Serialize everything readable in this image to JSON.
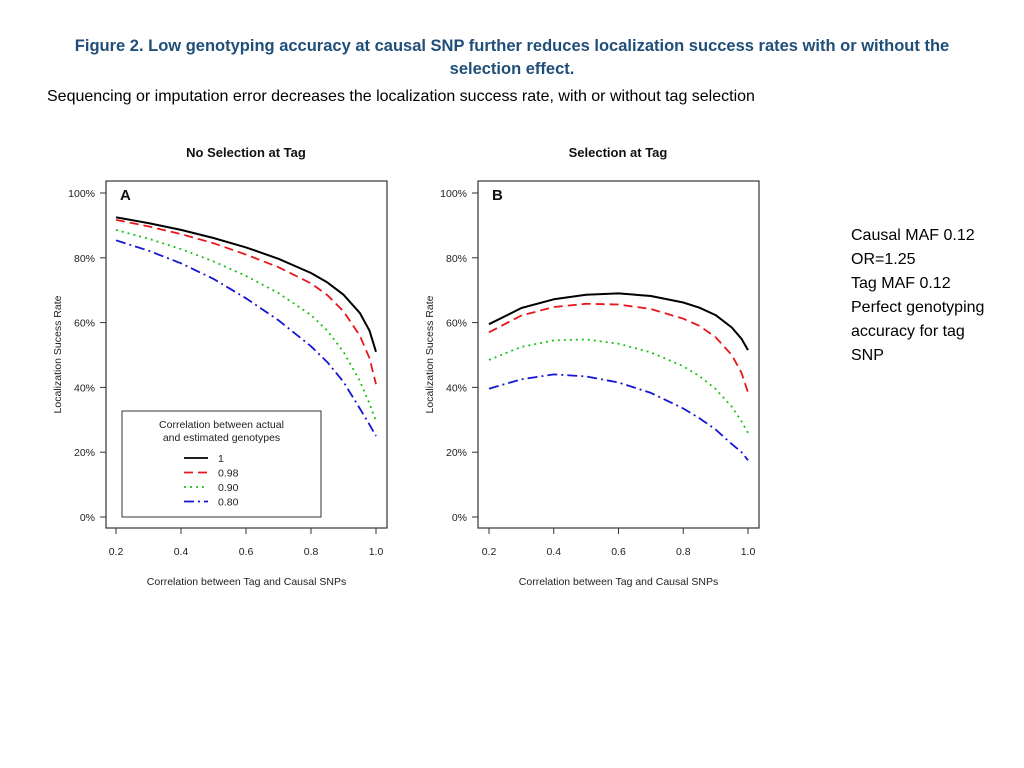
{
  "header": {
    "title": "Figure 2. Low genotyping accuracy at causal SNP further reduces localization success rates with or without the selection effect.",
    "subtitle": "Sequencing or imputation error decreases the localization success rate, with or without tag selection"
  },
  "notes": {
    "lines": [
      "Causal MAF 0.12",
      "OR=1.25",
      "Tag MAF 0.12",
      "Perfect genotyping",
      "accuracy for tag",
      "SNP"
    ]
  },
  "series_styles": [
    {
      "name": "1",
      "color": "#000000",
      "dash": "solid"
    },
    {
      "name": "0.98",
      "color": "#e8161b",
      "dash": "dashed"
    },
    {
      "name": "0.90",
      "color": "#16c416",
      "dash": "dotted"
    },
    {
      "name": "0.80",
      "color": "#1414d6",
      "dash": "dashdot"
    }
  ],
  "chart_data": [
    {
      "type": "line",
      "title": "No Selection at Tag",
      "panel_label": "A",
      "xlabel": "Correlation between Tag and Causal SNPs",
      "ylabel": "Localization Sucess Rate",
      "xlim": [
        0.2,
        1.0
      ],
      "ylim": [
        0,
        100
      ],
      "xticks": [
        "0.2",
        "0.4",
        "0.6",
        "0.8",
        "1.0"
      ],
      "yticks": [
        "0%",
        "20%",
        "40%",
        "60%",
        "80%",
        "100%"
      ],
      "legend": {
        "title_lines": [
          "Correlation between actual",
          "and estimated genotypes"
        ],
        "placement": "bottom-left"
      },
      "x": [
        0.2,
        0.3,
        0.4,
        0.5,
        0.6,
        0.7,
        0.8,
        0.85,
        0.9,
        0.95,
        0.98,
        1.0
      ],
      "series": [
        {
          "name": "1",
          "values": [
            92.5,
            90.7,
            88.6,
            86.1,
            83.2,
            79.7,
            75.3,
            72.4,
            68.6,
            63.0,
            57.5,
            51.0
          ]
        },
        {
          "name": "0.98",
          "values": [
            91.7,
            89.7,
            87.3,
            84.5,
            81.0,
            77.1,
            72.1,
            68.5,
            63.5,
            56.0,
            49.0,
            41.0
          ]
        },
        {
          "name": "0.90",
          "values": [
            88.6,
            85.9,
            82.7,
            78.9,
            74.4,
            69.1,
            62.3,
            57.5,
            51.0,
            42.0,
            35.0,
            29.5
          ]
        },
        {
          "name": "0.80",
          "values": [
            85.4,
            82.2,
            78.3,
            73.5,
            67.5,
            60.7,
            52.7,
            47.8,
            41.7,
            33.5,
            28.5,
            25.0
          ]
        }
      ]
    },
    {
      "type": "line",
      "title": "Selection at Tag",
      "panel_label": "B",
      "xlabel": "Correlation between Tag and Causal SNPs",
      "ylabel": "Localization Sucess Rate",
      "xlim": [
        0.2,
        1.0
      ],
      "ylim": [
        0,
        100
      ],
      "xticks": [
        "0.2",
        "0.4",
        "0.6",
        "0.8",
        "1.0"
      ],
      "yticks": [
        "0%",
        "20%",
        "40%",
        "60%",
        "80%",
        "100%"
      ],
      "x": [
        0.2,
        0.3,
        0.4,
        0.5,
        0.6,
        0.7,
        0.8,
        0.85,
        0.9,
        0.95,
        0.98,
        1.0
      ],
      "series": [
        {
          "name": "1",
          "values": [
            59.5,
            64.5,
            67.2,
            68.6,
            69.0,
            68.2,
            66.2,
            64.6,
            62.3,
            58.5,
            55.0,
            51.5
          ]
        },
        {
          "name": "0.98",
          "values": [
            57.0,
            62.2,
            64.8,
            65.8,
            65.6,
            64.2,
            61.2,
            59.0,
            55.5,
            50.0,
            44.5,
            38.5
          ]
        },
        {
          "name": "0.90",
          "values": [
            48.5,
            52.5,
            54.5,
            54.8,
            53.5,
            50.8,
            46.5,
            43.5,
            39.5,
            34.0,
            29.5,
            26.0
          ]
        },
        {
          "name": "0.80",
          "values": [
            39.6,
            42.5,
            44.0,
            43.4,
            41.5,
            38.3,
            33.5,
            30.5,
            27.0,
            22.5,
            20.0,
            17.5
          ]
        }
      ]
    }
  ]
}
